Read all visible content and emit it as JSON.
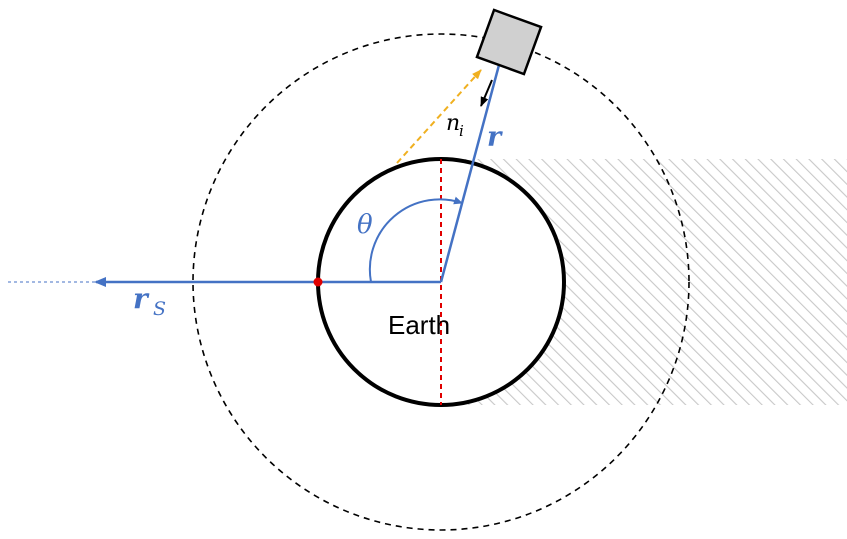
{
  "labels": {
    "earth": "Earth",
    "theta": "θ",
    "r": "r",
    "r_s": "r",
    "r_s_subscript": "S",
    "n": "n",
    "n_subscript": "i"
  },
  "colors": {
    "vector_blue": "#4472c4",
    "shadow_hatch": "#c8c8c8",
    "terminator_red": "#e00000",
    "sun_point_red": "#e00000",
    "earth_outline": "#000000",
    "orbit": "#000000",
    "sun_ray": "#f0b020",
    "satellite_fill": "#d0d0d0"
  }
}
